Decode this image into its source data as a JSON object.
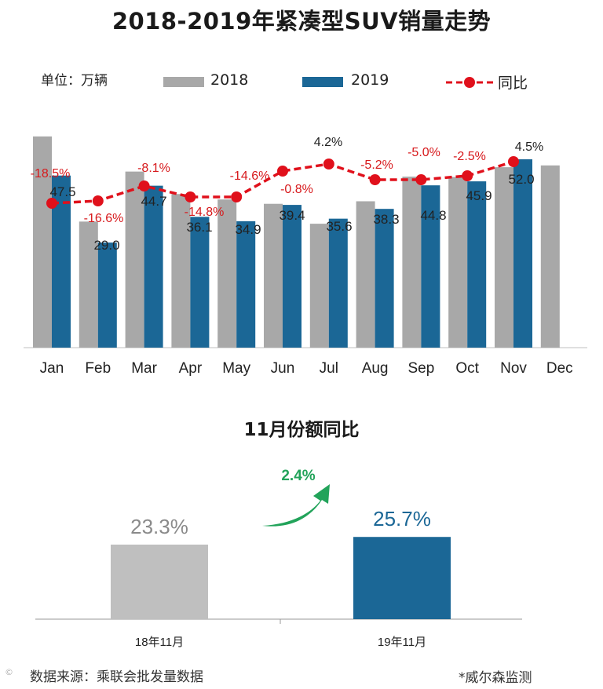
{
  "title": "2018-2019年紧凑型SUV销量走势",
  "unit": "单位：万辆",
  "legend": {
    "series_2018": "2018",
    "series_2019": "2019",
    "yoy": "同比"
  },
  "colors": {
    "gray": "#a8a8a8",
    "blue": "#1b6796",
    "red": "#e0101b",
    "green": "#22a35a"
  },
  "chart_data": [
    {
      "type": "bar",
      "categories": [
        "Jan",
        "Feb",
        "Mar",
        "Apr",
        "May",
        "Jun",
        "Jul",
        "Aug",
        "Sep",
        "Oct",
        "Nov",
        "Dec"
      ],
      "series": [
        {
          "name": "2018",
          "values": [
            58.3,
            34.8,
            48.6,
            42.4,
            40.9,
            39.7,
            34.2,
            40.4,
            47.2,
            47.1,
            49.8,
            50.3
          ]
        },
        {
          "name": "2019",
          "values": [
            47.5,
            29.0,
            44.7,
            36.1,
            34.9,
            39.4,
            35.6,
            38.3,
            44.8,
            45.9,
            52.0,
            null
          ]
        }
      ],
      "value_labels_2019": [
        "47.5",
        "29.0",
        "44.7",
        "36.1",
        "34.9",
        "39.4",
        "35.6",
        "38.3",
        "44.8",
        "45.9",
        "52.0",
        ""
      ],
      "yoy": {
        "name": "同比",
        "values": [
          -18.5,
          -16.6,
          -8.1,
          -14.8,
          -14.6,
          -0.8,
          4.2,
          -5.2,
          -5.0,
          -2.5,
          4.5,
          null
        ]
      },
      "yoy_labels": [
        "-18.5%",
        "-16.6%",
        "-8.1%",
        "-14.8%",
        "-14.6%",
        "-0.8%",
        "4.2%",
        "-5.2%",
        "-5.0%",
        "-2.5%",
        "4.5%",
        ""
      ],
      "title": "2018-2019年紧凑型SUV销量走势",
      "ylabel": "单位：万辆",
      "ylim": [
        0,
        60
      ],
      "grid": false,
      "legend_position": "top"
    },
    {
      "type": "bar",
      "title": "11月份额同比",
      "categories": [
        "18年11月",
        "19年11月"
      ],
      "values": [
        23.3,
        25.7
      ],
      "value_labels": [
        "23.3%",
        "25.7%"
      ],
      "change_label": "2.4%",
      "ylim": [
        0,
        30
      ]
    }
  ],
  "share": {
    "title": "11月份额同比"
  },
  "footer": {
    "source": "数据来源：乘联会批发量数据",
    "monitor": "*威尔森监测"
  }
}
